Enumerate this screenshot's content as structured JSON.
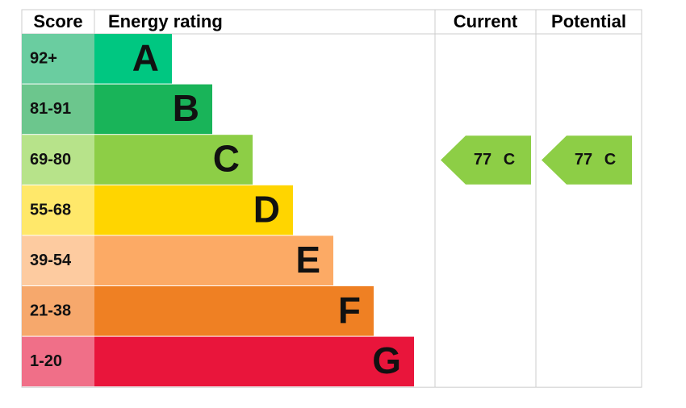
{
  "header": {
    "score": "Score",
    "rating": "Energy rating",
    "current": "Current",
    "potential": "Potential"
  },
  "bands": [
    {
      "score": "92+",
      "letter": "A",
      "color": "#00c781",
      "light": "#6acda0"
    },
    {
      "score": "81-91",
      "letter": "B",
      "color": "#19b459",
      "light": "#6cc68d"
    },
    {
      "score": "69-80",
      "letter": "C",
      "color": "#8dce46",
      "light": "#b7e38a"
    },
    {
      "score": "55-68",
      "letter": "D",
      "color": "#ffd500",
      "light": "#ffe86a"
    },
    {
      "score": "39-54",
      "letter": "E",
      "color": "#fcaa65",
      "light": "#fdcba0"
    },
    {
      "score": "21-38",
      "letter": "F",
      "color": "#ef8023",
      "light": "#f6a86c"
    },
    {
      "score": "1-20",
      "letter": "G",
      "color": "#e9153b",
      "light": "#f06f88"
    }
  ],
  "current": {
    "value": 77,
    "letter": "C"
  },
  "potential": {
    "value": 77,
    "letter": "C"
  }
}
